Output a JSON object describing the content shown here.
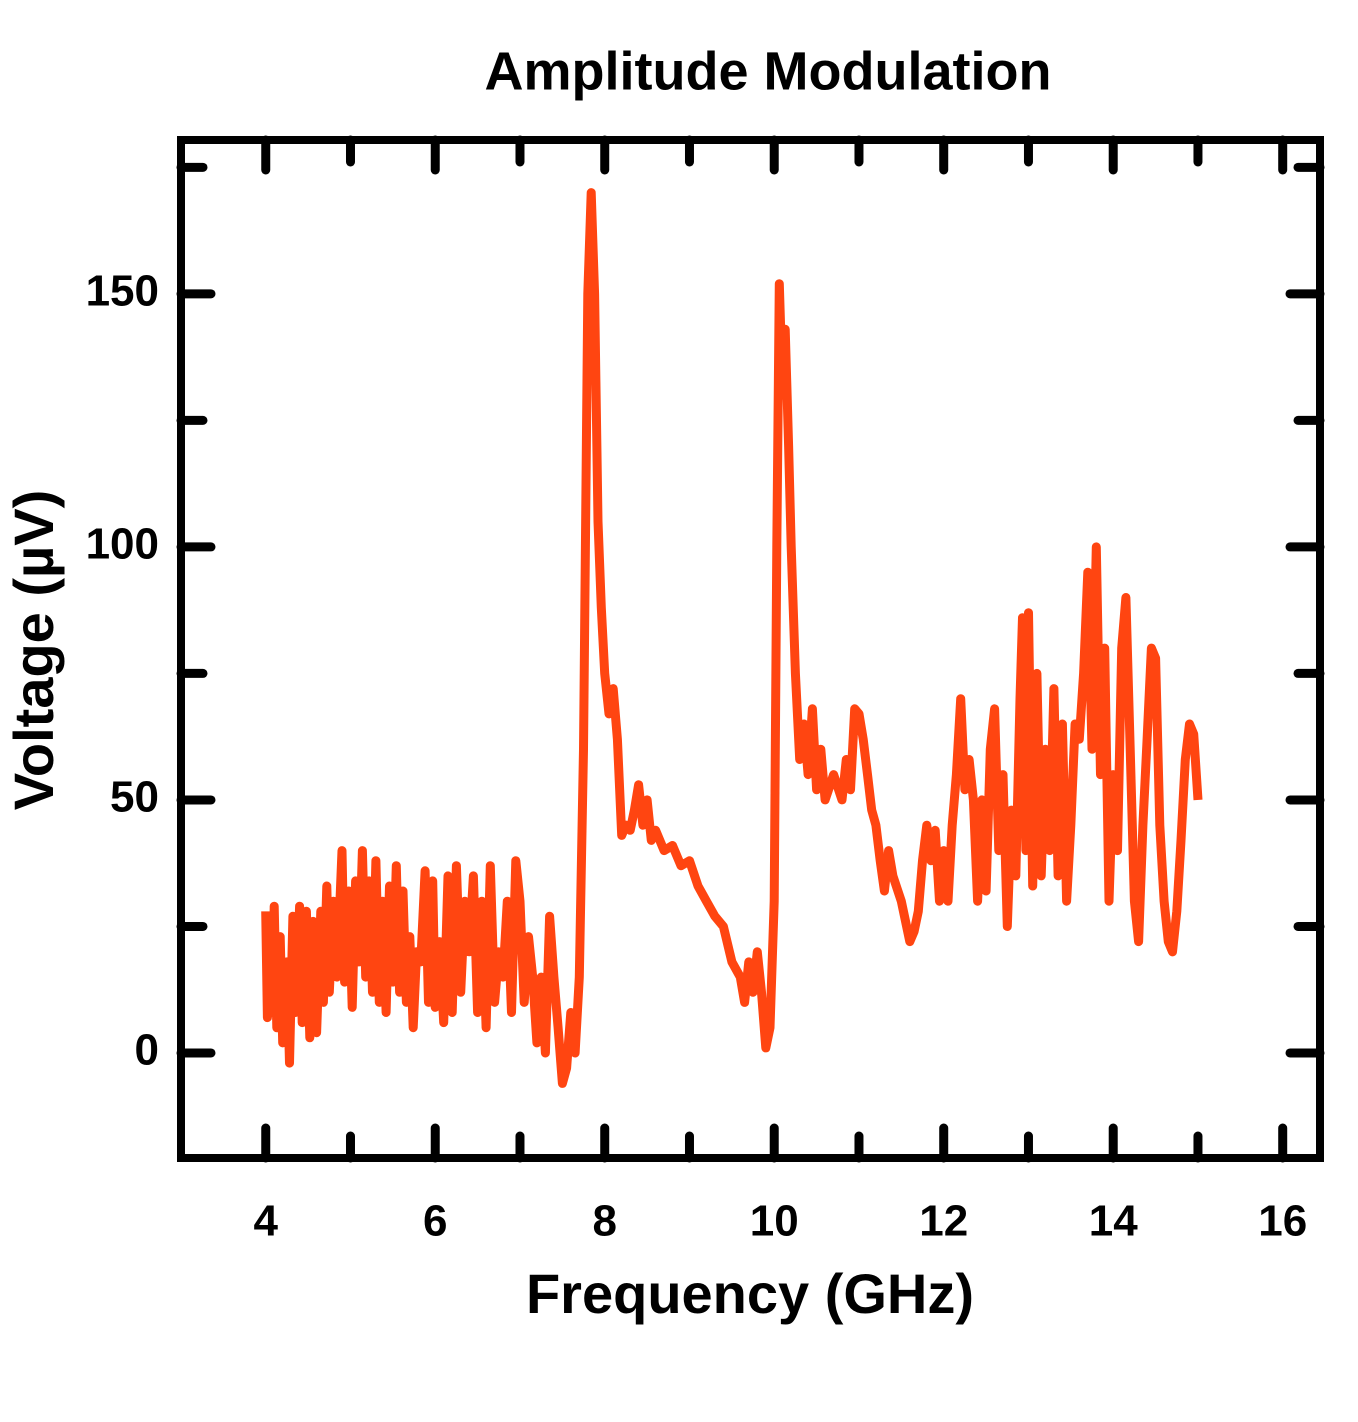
{
  "chart_data": {
    "type": "line",
    "title": "Amplitude Modulation",
    "xlabel": "Frequency (GHz)",
    "ylabel": "Voltage (µV)",
    "color": "#ff4511",
    "xlim": [
      3,
      16.44
    ],
    "ylim": [
      -20.75,
      180.4
    ],
    "xticks": [
      4,
      6,
      8,
      10,
      12,
      14,
      16
    ],
    "xminorticks": [
      5,
      7,
      9,
      11,
      13,
      15
    ],
    "yticks": [
      0,
      50,
      100,
      150
    ],
    "yminorticks": [
      25,
      75,
      125,
      175
    ],
    "x": [
      4.0,
      4.02,
      4.05,
      4.08,
      4.1,
      4.13,
      4.17,
      4.2,
      4.25,
      4.28,
      4.32,
      4.35,
      4.4,
      4.43,
      4.48,
      4.52,
      4.56,
      4.6,
      4.65,
      4.68,
      4.72,
      4.75,
      4.8,
      4.84,
      4.9,
      4.93,
      4.98,
      5.02,
      5.06,
      5.1,
      5.14,
      5.18,
      5.22,
      5.26,
      5.3,
      5.34,
      5.38,
      5.42,
      5.46,
      5.5,
      5.54,
      5.58,
      5.62,
      5.66,
      5.7,
      5.74,
      5.78,
      5.83,
      5.88,
      5.92,
      5.97,
      6.0,
      6.05,
      6.1,
      6.15,
      6.2,
      6.25,
      6.3,
      6.35,
      6.4,
      6.45,
      6.5,
      6.55,
      6.6,
      6.65,
      6.7,
      6.75,
      6.8,
      6.85,
      6.9,
      6.95,
      7.0,
      7.05,
      7.1,
      7.15,
      7.2,
      7.25,
      7.3,
      7.35,
      7.4,
      7.45,
      7.5,
      7.55,
      7.6,
      7.65,
      7.7,
      7.75,
      7.8,
      7.84,
      7.88,
      7.92,
      7.96,
      8.0,
      8.05,
      8.1,
      8.15,
      8.2,
      8.25,
      8.3,
      8.35,
      8.4,
      8.45,
      8.5,
      8.55,
      8.6,
      8.7,
      8.8,
      8.9,
      9.0,
      9.1,
      9.2,
      9.3,
      9.4,
      9.5,
      9.6,
      9.65,
      9.7,
      9.75,
      9.8,
      9.85,
      9.9,
      9.95,
      10.0,
      10.03,
      10.06,
      10.1,
      10.13,
      10.17,
      10.2,
      10.25,
      10.3,
      10.35,
      10.4,
      10.45,
      10.5,
      10.55,
      10.6,
      10.7,
      10.8,
      10.85,
      10.9,
      10.95,
      11.0,
      11.05,
      11.1,
      11.15,
      11.2,
      11.25,
      11.3,
      11.35,
      11.4,
      11.5,
      11.6,
      11.65,
      11.7,
      11.75,
      11.8,
      11.85,
      11.9,
      11.95,
      12.0,
      12.05,
      12.1,
      12.15,
      12.2,
      12.25,
      12.3,
      12.35,
      12.4,
      12.45,
      12.5,
      12.55,
      12.6,
      12.65,
      12.7,
      12.75,
      12.8,
      12.85,
      12.9,
      12.93,
      12.97,
      13.0,
      13.05,
      13.1,
      13.15,
      13.2,
      13.25,
      13.3,
      13.35,
      13.4,
      13.45,
      13.5,
      13.55,
      13.6,
      13.65,
      13.7,
      13.75,
      13.8,
      13.85,
      13.9,
      13.95,
      14.0,
      14.05,
      14.1,
      14.15,
      14.2,
      14.25,
      14.3,
      14.35,
      14.4,
      14.45,
      14.5,
      14.55,
      14.6,
      14.65,
      14.7,
      14.75,
      14.8,
      14.85,
      14.9,
      14.95,
      15.0
    ],
    "values": [
      28,
      7,
      25,
      8,
      29,
      5,
      23,
      2,
      18,
      -2,
      27,
      8,
      29,
      6,
      28,
      3,
      26,
      4,
      28,
      10,
      33,
      12,
      30,
      15,
      40,
      14,
      32,
      9,
      34,
      18,
      40,
      15,
      34,
      12,
      38,
      10,
      30,
      8,
      33,
      14,
      37,
      12,
      32,
      10,
      23,
      5,
      20,
      18,
      36,
      10,
      34,
      9,
      22,
      6,
      35,
      8,
      37,
      12,
      30,
      20,
      35,
      8,
      30,
      5,
      37,
      10,
      20,
      15,
      30,
      8,
      38,
      30,
      10,
      23,
      15,
      2,
      15,
      0,
      27,
      15,
      5,
      -6,
      -3,
      8,
      0,
      15,
      60,
      150,
      170,
      150,
      105,
      88,
      75,
      67,
      72,
      62,
      43,
      45,
      44,
      48,
      53,
      45,
      50,
      42,
      44,
      40,
      41,
      37,
      38,
      33,
      30,
      27,
      25,
      18,
      15,
      10,
      18,
      12,
      20,
      12,
      1,
      5,
      30,
      100,
      152,
      130,
      143,
      120,
      100,
      75,
      58,
      65,
      55,
      68,
      52,
      60,
      50,
      55,
      50,
      58,
      52,
      68,
      67,
      62,
      55,
      48,
      45,
      38,
      32,
      40,
      35,
      30,
      22,
      24,
      28,
      38,
      45,
      38,
      44,
      30,
      40,
      30,
      45,
      55,
      70,
      52,
      58,
      50,
      30,
      50,
      32,
      60,
      68,
      40,
      55,
      25,
      48,
      35,
      70,
      86,
      40,
      87,
      33,
      75,
      35,
      60,
      40,
      72,
      35,
      65,
      30,
      45,
      65,
      62,
      75,
      95,
      60,
      100,
      55,
      80,
      30,
      55,
      40,
      80,
      90,
      60,
      30,
      22,
      45,
      62,
      80,
      78,
      45,
      30,
      22,
      20,
      28,
      42,
      58,
      65,
      63,
      50
    ]
  }
}
